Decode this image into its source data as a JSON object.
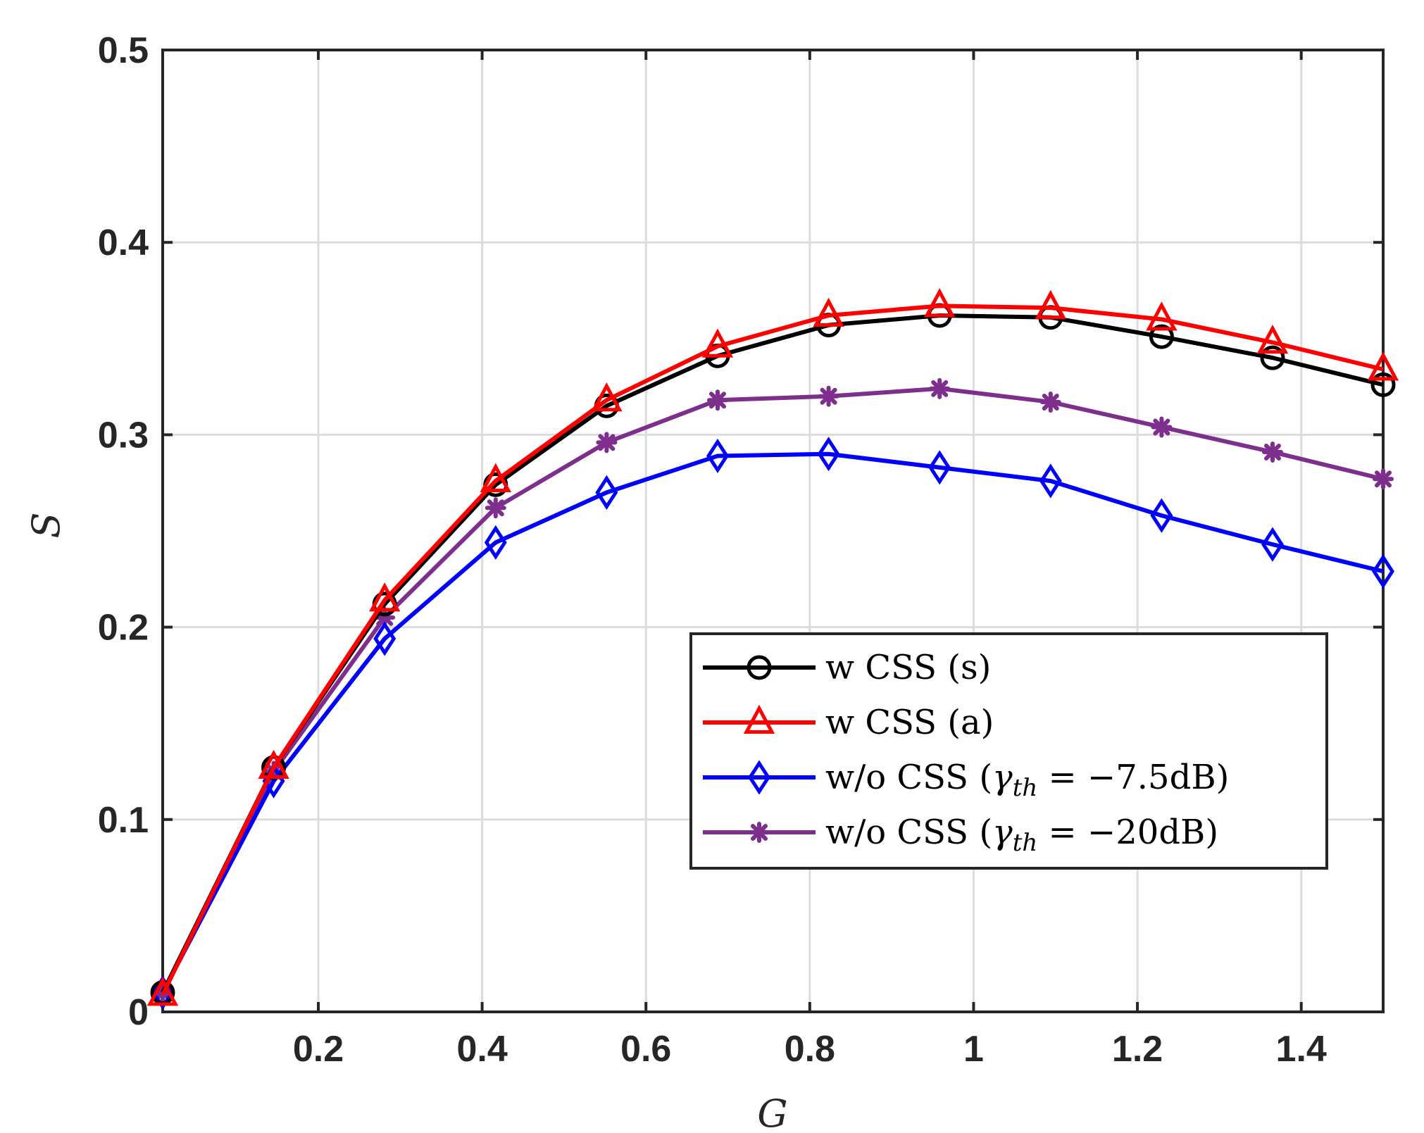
{
  "chart_data": {
    "type": "line",
    "title": "",
    "xlabel": "G",
    "ylabel": "S",
    "xlim": [
      0.01,
      1.5
    ],
    "ylim": [
      0,
      0.5
    ],
    "xticks": [
      0.2,
      0.4,
      0.6,
      0.8,
      1.0,
      1.2,
      1.4
    ],
    "xtick_labels": [
      "0.2",
      "0.4",
      "0.6",
      "0.8",
      "1",
      "1.2",
      "1.4"
    ],
    "yticks": [
      0,
      0.1,
      0.2,
      0.3,
      0.4,
      0.5
    ],
    "ytick_labels": [
      "0",
      "0.1",
      "0.2",
      "0.3",
      "0.4",
      "0.5"
    ],
    "grid": true,
    "legend_position": "center-right",
    "x": [
      0.01,
      0.1455,
      0.281,
      0.4165,
      0.552,
      0.6875,
      0.823,
      0.9585,
      1.094,
      1.2295,
      1.365,
      1.5
    ],
    "series": [
      {
        "name": "w CSS (s)",
        "legend": {
          "main": "w CSS (s)"
        },
        "color": "#000000",
        "marker": "circle",
        "values": [
          0.01,
          0.127,
          0.212,
          0.274,
          0.315,
          0.341,
          0.357,
          0.362,
          0.361,
          0.351,
          0.34,
          0.326
        ]
      },
      {
        "name": "w CSS (a)",
        "legend": {
          "main": "w CSS (a)"
        },
        "color": "#ff0000",
        "marker": "triangle",
        "values": [
          0.009,
          0.127,
          0.214,
          0.276,
          0.318,
          0.346,
          0.362,
          0.367,
          0.366,
          0.36,
          0.348,
          0.334
        ]
      },
      {
        "name": "w/o CSS (γth = −7.5dB)",
        "legend": {
          "main": "w/o CSS (",
          "gamma": "γ",
          "sub": "th",
          "rest": " = −7.5dB)"
        },
        "color": "#0000ff",
        "marker": "diamond",
        "values": [
          0.01,
          0.12,
          0.194,
          0.244,
          0.27,
          0.289,
          0.29,
          0.283,
          0.276,
          0.258,
          0.243,
          0.229
        ]
      },
      {
        "name": "w/o CSS (γth = −20dB)",
        "legend": {
          "main": "w/o CSS (",
          "gamma": "γ",
          "sub": "th",
          "rest": " = −20dB)"
        },
        "color": "#7e2f8e",
        "marker": "asterisk",
        "values": [
          0.01,
          0.125,
          0.205,
          0.262,
          0.296,
          0.318,
          0.32,
          0.324,
          0.317,
          0.304,
          0.291,
          0.277
        ]
      }
    ]
  }
}
